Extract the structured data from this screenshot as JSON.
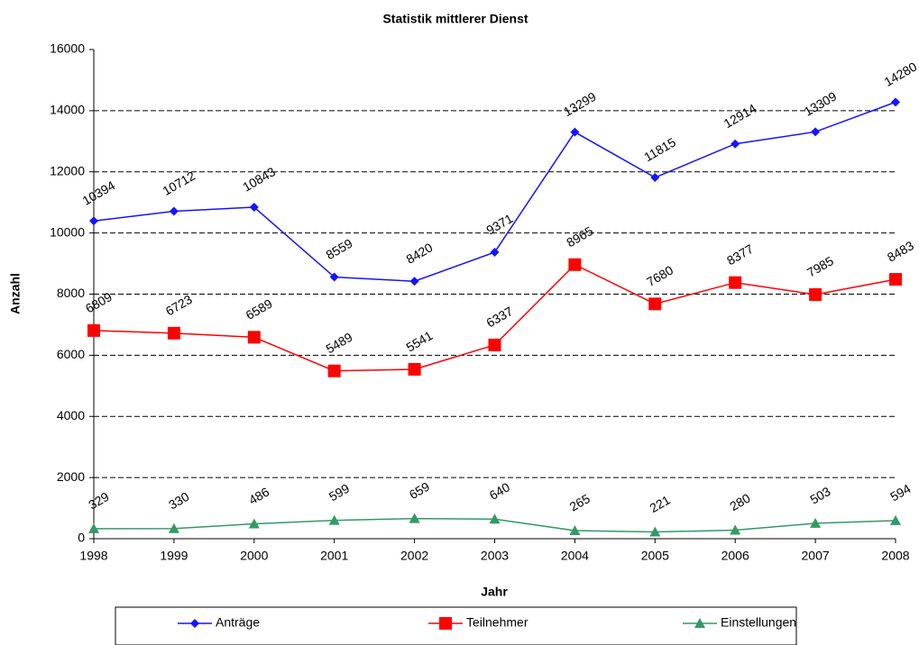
{
  "chart_data": {
    "type": "line",
    "title": "Statistik mittlerer Dienst",
    "x_label": "Jahr",
    "y_label": "Anzahl",
    "categories": [
      "1998",
      "1999",
      "2000",
      "2001",
      "2002",
      "2003",
      "2004",
      "2005",
      "2006",
      "2007",
      "2008"
    ],
    "series": [
      {
        "name": "Anträge",
        "color": "#1414ff",
        "marker": "diamond",
        "values": [
          10394,
          10712,
          10843,
          8559,
          8420,
          9371,
          13299,
          11815,
          12914,
          13309,
          14280
        ]
      },
      {
        "name": "Teilnehmer",
        "color": "#ff0000",
        "marker": "square",
        "values": [
          6809,
          6723,
          6589,
          5489,
          5541,
          6337,
          8965,
          7680,
          8377,
          7985,
          8483
        ]
      },
      {
        "name": "Einstellungen",
        "color": "#339966",
        "marker": "triangle",
        "values": [
          329,
          330,
          486,
          599,
          659,
          640,
          265,
          221,
          280,
          503,
          594
        ]
      }
    ],
    "ylim": [
      0,
      16000
    ],
    "yticks": [
      0,
      2000,
      4000,
      6000,
      8000,
      10000,
      12000,
      14000,
      16000
    ],
    "grid": true,
    "legend": "bottom"
  }
}
